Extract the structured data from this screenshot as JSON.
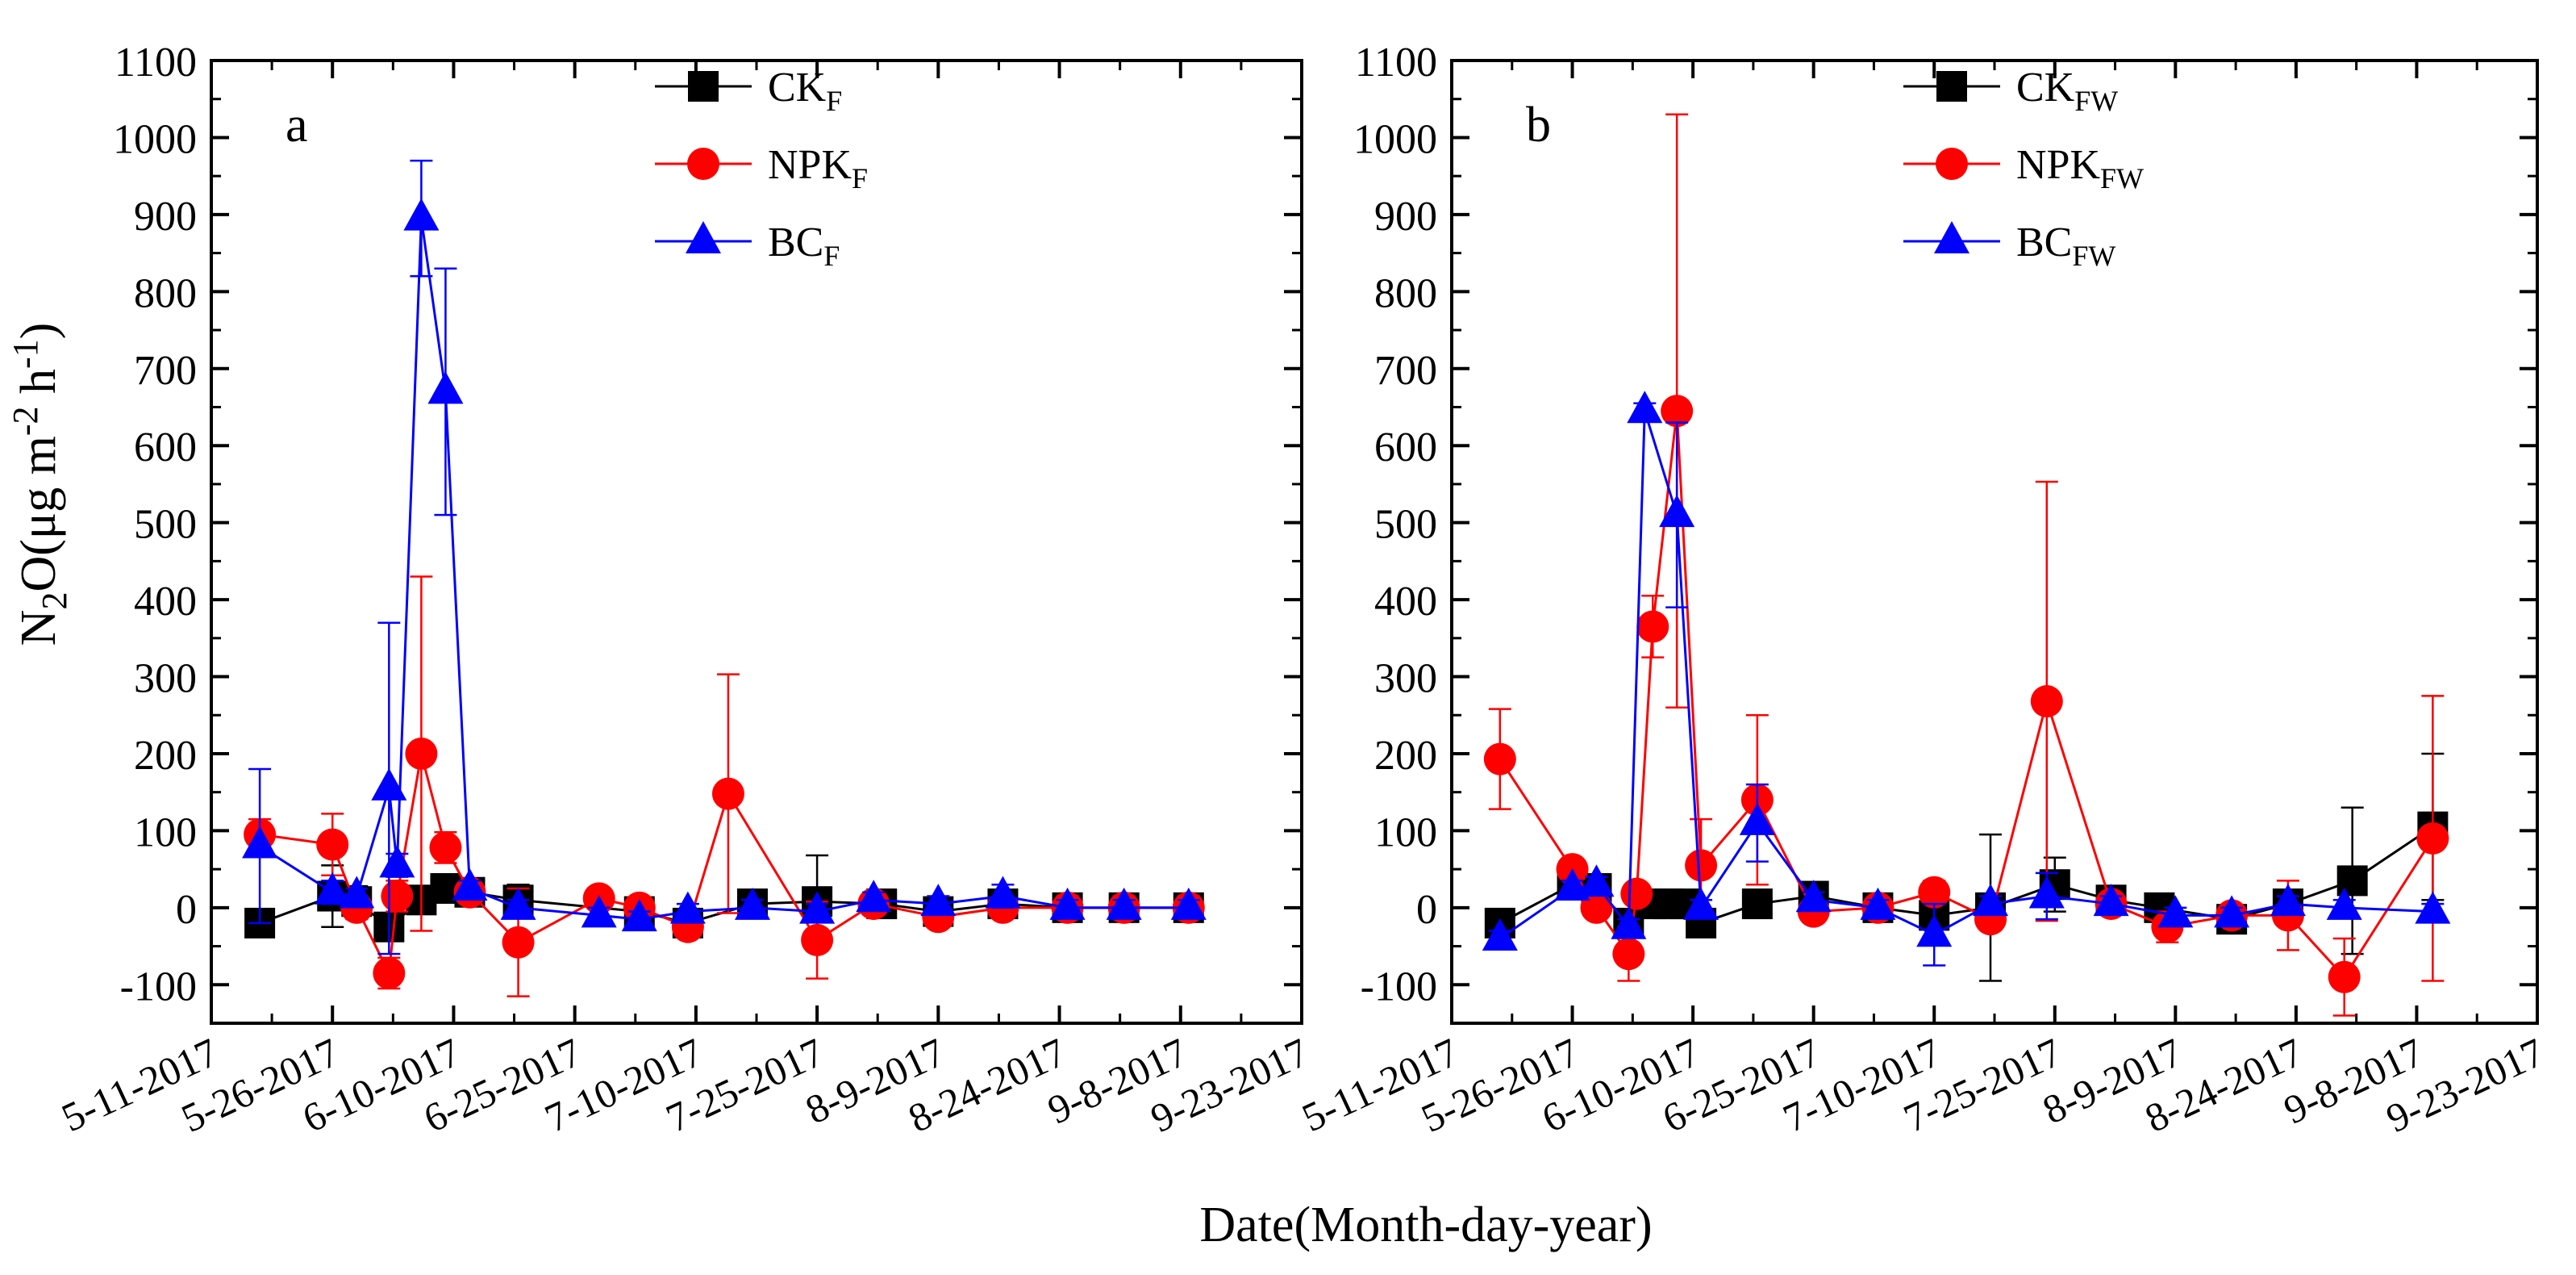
{
  "figure": {
    "shared_ylabel_main": "N",
    "shared_ylabel_sub": "2",
    "shared_ylabel_rest": "O(μg m",
    "shared_ylabel_sup1": "-2",
    "shared_ylabel_mid": " h",
    "shared_ylabel_sup2": "-1",
    "shared_ylabel_end": ")",
    "shared_xlabel": "Date(Month-day-year)"
  },
  "chart_data": [
    {
      "type": "line",
      "panel_label": "a",
      "ylim": [
        -150,
        1100
      ],
      "yticks": [
        -100,
        0,
        100,
        200,
        300,
        400,
        500,
        600,
        700,
        800,
        900,
        1000,
        1100
      ],
      "xlim_days": [
        0,
        135
      ],
      "xtick_days": [
        0,
        15,
        30,
        45,
        60,
        75,
        90,
        105,
        120,
        135
      ],
      "xtick_labels": [
        "5-11-2017",
        "5-26-2017",
        "6-10-2017",
        "6-25-2017",
        "7-10-2017",
        "7-25-2017",
        "8-9-2017",
        "8-24-2017",
        "9-8-2017",
        "9-23-2017"
      ],
      "legend": [
        {
          "main": "CK",
          "sub": "F",
          "color": "#000000",
          "marker": "square"
        },
        {
          "main": "NPK",
          "sub": "F",
          "color": "#ff0000",
          "marker": "circle"
        },
        {
          "main": "BC",
          "sub": "F",
          "color": "#0000ff",
          "marker": "triangle"
        }
      ],
      "series": [
        {
          "name": "CK_F",
          "color": "#000000",
          "marker": "square",
          "x": [
            6,
            15,
            18,
            22,
            26,
            29,
            32,
            38,
            53,
            59,
            67,
            75,
            83,
            90,
            98,
            106,
            113,
            121
          ],
          "y": [
            -20,
            15,
            8,
            -25,
            10,
            25,
            20,
            10,
            -5,
            -20,
            5,
            8,
            5,
            -5,
            5,
            0,
            0,
            0
          ],
          "err": [
            15,
            40,
            20,
            15,
            15,
            10,
            10,
            20,
            5,
            10,
            10,
            60,
            10,
            10,
            10,
            10,
            10,
            10
          ]
        },
        {
          "name": "NPK_F",
          "color": "#ff0000",
          "marker": "circle",
          "x": [
            6,
            15,
            18,
            22,
            23,
            26,
            29,
            32,
            38,
            48,
            53,
            59,
            64,
            75,
            82,
            90,
            98,
            106,
            113,
            121
          ],
          "y": [
            95,
            82,
            0,
            -85,
            15,
            200,
            78,
            20,
            -45,
            12,
            0,
            -25,
            148,
            -42,
            5,
            -12,
            0,
            0,
            0,
            0
          ],
          "err": [
            20,
            40,
            15,
            20,
            20,
            230,
            20,
            10,
            70,
            10,
            10,
            10,
            155,
            50,
            10,
            10,
            10,
            15,
            15,
            15
          ]
        },
        {
          "name": "BC_F",
          "color": "#0000ff",
          "marker": "triangle",
          "x": [
            6,
            15,
            18,
            22,
            23,
            26,
            29,
            32,
            38,
            48,
            53,
            59,
            67,
            75,
            82,
            90,
            98,
            106,
            113,
            121
          ],
          "y": [
            80,
            20,
            15,
            155,
            55,
            895,
            670,
            25,
            0,
            -10,
            -15,
            -5,
            0,
            -5,
            10,
            5,
            15,
            0,
            0,
            0
          ],
          "err": [
            100,
            15,
            10,
            215,
            15,
            75,
            160,
            10,
            10,
            10,
            10,
            10,
            10,
            10,
            10,
            10,
            15,
            10,
            10,
            10
          ]
        }
      ]
    },
    {
      "type": "line",
      "panel_label": "b",
      "ylim": [
        -150,
        1100
      ],
      "yticks": [
        -100,
        0,
        100,
        200,
        300,
        400,
        500,
        600,
        700,
        800,
        900,
        1000,
        1100
      ],
      "xlim_days": [
        0,
        135
      ],
      "xtick_days": [
        0,
        15,
        30,
        45,
        60,
        75,
        90,
        105,
        120,
        135
      ],
      "xtick_labels": [
        "5-11-2017",
        "5-26-2017",
        "6-10-2017",
        "6-25-2017",
        "7-10-2017",
        "7-25-2017",
        "8-9-2017",
        "8-24-2017",
        "9-8-2017",
        "9-23-2017"
      ],
      "legend": [
        {
          "main": "CK",
          "sub": "FW",
          "color": "#000000",
          "marker": "square"
        },
        {
          "main": "NPK",
          "sub": "FW",
          "color": "#ff0000",
          "marker": "circle"
        },
        {
          "main": "BC",
          "sub": "FW",
          "color": "#0000ff",
          "marker": "triangle"
        }
      ],
      "series": [
        {
          "name": "CK_FW",
          "color": "#000000",
          "marker": "square",
          "x": [
            6,
            15,
            18,
            22,
            25,
            27,
            29,
            31,
            38,
            45,
            53,
            60,
            67,
            75,
            82,
            88,
            97,
            104,
            112,
            122
          ],
          "y": [
            -20,
            30,
            25,
            -20,
            5,
            5,
            5,
            -20,
            5,
            15,
            0,
            -10,
            0,
            30,
            10,
            0,
            -15,
            5,
            35,
            105
          ],
          "err": [
            10,
            10,
            10,
            10,
            10,
            10,
            10,
            10,
            10,
            10,
            10,
            10,
            95,
            35,
            10,
            10,
            10,
            10,
            95,
            95
          ]
        },
        {
          "name": "NPK_FW",
          "color": "#ff0000",
          "marker": "circle",
          "x": [
            6,
            15,
            18,
            22,
            23,
            25,
            28,
            31,
            38,
            45,
            53,
            60,
            67,
            74,
            82,
            89,
            97,
            104,
            111,
            122
          ],
          "y": [
            193,
            50,
            0,
            -60,
            18,
            365,
            645,
            55,
            140,
            -5,
            0,
            20,
            -15,
            268,
            5,
            -25,
            -10,
            -10,
            -90,
            90
          ],
          "err": [
            65,
            10,
            10,
            35,
            10,
            40,
            385,
            60,
            110,
            10,
            10,
            15,
            10,
            285,
            10,
            20,
            10,
            45,
            50,
            185
          ]
        },
        {
          "name": "BC_FW",
          "color": "#0000ff",
          "marker": "triangle",
          "x": [
            6,
            15,
            18,
            22,
            24,
            28,
            31,
            38,
            45,
            53,
            60,
            67,
            74,
            82,
            90,
            97,
            104,
            111,
            122
          ],
          "y": [
            -40,
            25,
            30,
            -25,
            645,
            510,
            0,
            110,
            10,
            0,
            -35,
            5,
            15,
            5,
            -10,
            -10,
            5,
            0,
            -5
          ],
          "err": [
            10,
            10,
            10,
            10,
            10,
            120,
            10,
            50,
            10,
            10,
            40,
            10,
            30,
            10,
            10,
            10,
            10,
            10,
            10
          ]
        }
      ]
    }
  ]
}
